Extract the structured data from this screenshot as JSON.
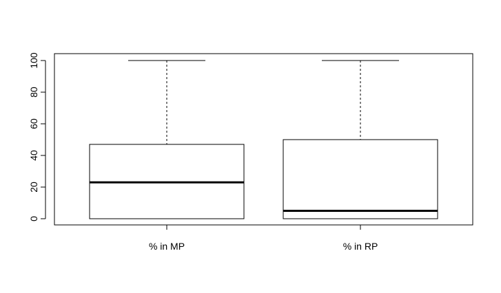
{
  "chart_data": {
    "type": "boxplot",
    "title": "",
    "xlabel": "",
    "ylabel": "",
    "ylim": [
      -4,
      108
    ],
    "yticks": [
      0,
      20,
      40,
      60,
      80,
      100
    ],
    "grid": false,
    "categories": [
      "% in MP",
      "% in RP"
    ],
    "boxes": [
      {
        "category": "% in MP",
        "min": 0,
        "q1": 0,
        "median": 23,
        "q3": 47,
        "max": 100
      },
      {
        "category": "% in RP",
        "min": 0,
        "q1": 0,
        "median": 5,
        "q3": 50,
        "max": 100
      }
    ],
    "colors": {
      "box_fill": "#ffffff",
      "stroke": "#000000"
    }
  }
}
